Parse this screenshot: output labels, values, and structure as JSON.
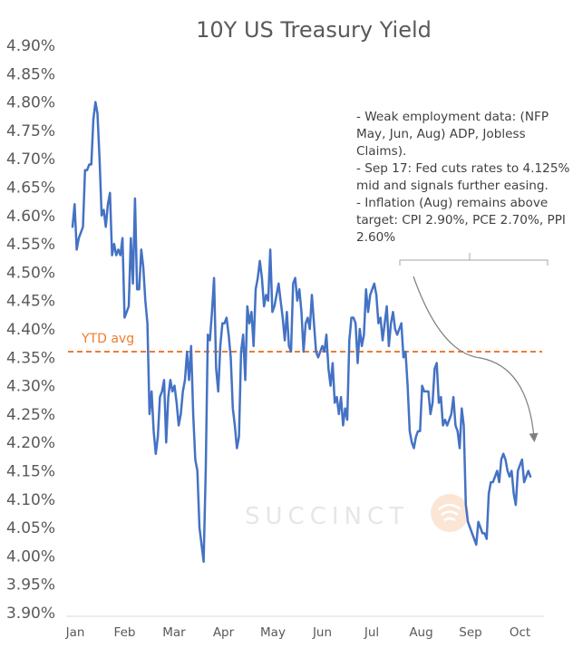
{
  "chart_data": {
    "type": "line",
    "title": "10Y US Treasury Yield",
    "xlabel": "",
    "ylabel": "",
    "ylim": [
      3.9,
      4.9
    ],
    "yticks": [
      "4.90%",
      "4.85%",
      "4.80%",
      "4.75%",
      "4.70%",
      "4.65%",
      "4.60%",
      "4.55%",
      "4.50%",
      "4.45%",
      "4.40%",
      "4.35%",
      "4.30%",
      "4.25%",
      "4.20%",
      "4.15%",
      "4.10%",
      "4.05%",
      "4.00%",
      "3.95%",
      "3.90%"
    ],
    "months": [
      "Jan",
      "Feb",
      "Mar",
      "Apr",
      "May",
      "Jun",
      "Jul",
      "Aug",
      "Sep",
      "Oct"
    ],
    "grid": false,
    "series": [
      {
        "name": "10Y US Treasury Yield",
        "color": "#4472C4",
        "values": [
          4.58,
          4.62,
          4.54,
          4.56,
          4.57,
          4.58,
          4.68,
          4.68,
          4.69,
          4.69,
          4.77,
          4.8,
          4.78,
          4.7,
          4.6,
          4.61,
          4.58,
          4.62,
          4.64,
          4.53,
          4.55,
          4.53,
          4.54,
          4.53,
          4.56,
          4.42,
          4.43,
          4.44,
          4.56,
          4.48,
          4.63,
          4.47,
          4.47,
          4.54,
          4.51,
          4.45,
          4.41,
          4.25,
          4.29,
          4.22,
          4.18,
          4.21,
          4.28,
          4.29,
          4.31,
          4.2,
          4.28,
          4.31,
          4.29,
          4.3,
          4.27,
          4.23,
          4.25,
          4.29,
          4.31,
          4.36,
          4.31,
          4.37,
          4.25,
          4.17,
          4.15,
          4.05,
          4.02,
          3.99,
          4.15,
          4.39,
          4.38,
          4.43,
          4.49,
          4.33,
          4.29,
          4.37,
          4.41,
          4.41,
          4.42,
          4.39,
          4.35,
          4.26,
          4.23,
          4.19,
          4.21,
          4.36,
          4.39,
          4.31,
          4.44,
          4.41,
          4.43,
          4.37,
          4.47,
          4.49,
          4.52,
          4.49,
          4.44,
          4.46,
          4.45,
          4.54,
          4.43,
          4.44,
          4.46,
          4.48,
          4.45,
          4.42,
          4.38,
          4.43,
          4.37,
          4.36,
          4.48,
          4.49,
          4.45,
          4.47,
          4.43,
          4.36,
          4.41,
          4.42,
          4.4,
          4.46,
          4.41,
          4.36,
          4.35,
          4.36,
          4.37,
          4.36,
          4.39,
          4.33,
          4.3,
          4.34,
          4.27,
          4.28,
          4.25,
          4.28,
          4.23,
          4.26,
          4.24,
          4.38,
          4.42,
          4.42,
          4.41,
          4.34,
          4.4,
          4.37,
          4.39,
          4.47,
          4.43,
          4.46,
          4.47,
          4.48,
          4.46,
          4.41,
          4.42,
          4.38,
          4.41,
          4.44,
          4.37,
          4.41,
          4.43,
          4.4,
          4.39,
          4.4,
          4.41,
          4.35,
          4.36,
          4.3,
          4.22,
          4.2,
          4.19,
          4.21,
          4.22,
          4.22,
          4.3,
          4.29,
          4.29,
          4.29,
          4.25,
          4.27,
          4.33,
          4.34,
          4.27,
          4.28,
          4.23,
          4.24,
          4.23,
          4.24,
          4.25,
          4.28,
          4.23,
          4.22,
          4.19,
          4.26,
          4.23,
          4.09,
          4.06,
          4.05,
          4.04,
          4.03,
          4.02,
          4.06,
          4.05,
          4.04,
          4.04,
          4.03,
          4.11,
          4.13,
          4.13,
          4.14,
          4.15,
          4.13,
          4.17,
          4.18,
          4.17,
          4.15,
          4.14,
          4.15,
          4.11,
          4.09,
          4.15,
          4.16,
          4.17,
          4.13,
          4.14,
          4.15,
          4.14
        ]
      },
      {
        "name": "YTD avg",
        "color": "#ED7D31",
        "value": 4.36
      }
    ],
    "annotations": [
      {
        "text": "YTD avg"
      },
      {
        "lines": [
          "- Weak employment data: (NFP",
          "May, Jun, Aug) ADP, Jobless",
          "Claims).",
          "- Sep 17: Fed cuts rates to 4.125%",
          "mid and signals further easing.",
          "- Inflation (Aug) remains above",
          "target: CPI 2.90%, PCE 2.70%, PPI",
          "2.60%"
        ]
      }
    ]
  }
}
